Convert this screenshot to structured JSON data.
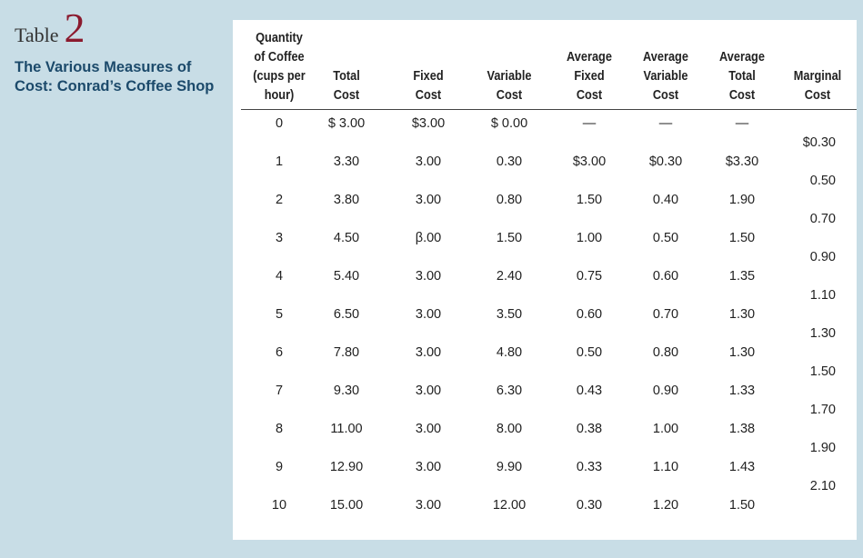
{
  "label": {
    "table_word": "Table",
    "table_number": "2",
    "title": "The Various Measures of Cost: Conrad’s Coffee Shop"
  },
  "columns": [
    "Quantity of Coffee (cups per hour)",
    "Total Cost",
    "Fixed Cost",
    "Variable Cost",
    "Average Fixed Cost",
    "Average Variable Cost",
    "Average Total Cost",
    "Marginal Cost"
  ],
  "column_lines": [
    [
      "Quantity",
      "of Coffee",
      "(cups per",
      "hour)"
    ],
    [
      "Total",
      "Cost"
    ],
    [
      "Fixed",
      "Cost"
    ],
    [
      "Variable",
      "Cost"
    ],
    [
      "Average",
      "Fixed",
      "Cost"
    ],
    [
      "Average",
      "Variable",
      "Cost"
    ],
    [
      "Average",
      "Total",
      "Cost"
    ],
    [
      "Marginal",
      "Cost"
    ]
  ],
  "rows": [
    {
      "quantity": "0",
      "total_cost": "$ 3.00",
      "fixed_cost": "$3.00",
      "variable_cost": "$ 0.00",
      "avg_fixed_cost": "—",
      "avg_variable_cost": "—",
      "avg_total_cost": "—"
    },
    {
      "quantity": "1",
      "total_cost": "3.30",
      "fixed_cost": "3.00",
      "variable_cost": "0.30",
      "avg_fixed_cost": "$3.00",
      "avg_variable_cost": "$0.30",
      "avg_total_cost": "$3.30"
    },
    {
      "quantity": "2",
      "total_cost": "3.80",
      "fixed_cost": "3.00",
      "variable_cost": "0.80",
      "avg_fixed_cost": "1.50",
      "avg_variable_cost": "0.40",
      "avg_total_cost": "1.90"
    },
    {
      "quantity": "3",
      "total_cost": "4.50",
      "fixed_cost": "β.00",
      "variable_cost": "1.50",
      "avg_fixed_cost": "1.00",
      "avg_variable_cost": "0.50",
      "avg_total_cost": "1.50"
    },
    {
      "quantity": "4",
      "total_cost": "5.40",
      "fixed_cost": "3.00",
      "variable_cost": "2.40",
      "avg_fixed_cost": "0.75",
      "avg_variable_cost": "0.60",
      "avg_total_cost": "1.35"
    },
    {
      "quantity": "5",
      "total_cost": "6.50",
      "fixed_cost": "3.00",
      "variable_cost": "3.50",
      "avg_fixed_cost": "0.60",
      "avg_variable_cost": "0.70",
      "avg_total_cost": "1.30"
    },
    {
      "quantity": "6",
      "total_cost": "7.80",
      "fixed_cost": "3.00",
      "variable_cost": "4.80",
      "avg_fixed_cost": "0.50",
      "avg_variable_cost": "0.80",
      "avg_total_cost": "1.30"
    },
    {
      "quantity": "7",
      "total_cost": "9.30",
      "fixed_cost": "3.00",
      "variable_cost": "6.30",
      "avg_fixed_cost": "0.43",
      "avg_variable_cost": "0.90",
      "avg_total_cost": "1.33"
    },
    {
      "quantity": "8",
      "total_cost": "11.00",
      "fixed_cost": "3.00",
      "variable_cost": "8.00",
      "avg_fixed_cost": "0.38",
      "avg_variable_cost": "1.00",
      "avg_total_cost": "1.38"
    },
    {
      "quantity": "9",
      "total_cost": "12.90",
      "fixed_cost": "3.00",
      "variable_cost": "9.90",
      "avg_fixed_cost": "0.33",
      "avg_variable_cost": "1.10",
      "avg_total_cost": "1.43"
    },
    {
      "quantity": "10",
      "total_cost": "15.00",
      "fixed_cost": "3.00",
      "variable_cost": "12.00",
      "avg_fixed_cost": "0.30",
      "avg_variable_cost": "1.20",
      "avg_total_cost": "1.50"
    }
  ],
  "marginal_cost": [
    "$0.30",
    "0.50",
    "0.70",
    "0.90",
    "1.10",
    "1.30",
    "1.50",
    "1.70",
    "1.90",
    "2.10"
  ],
  "colors": {
    "background": "#c8dde6",
    "panel": "#ffffff",
    "title_text": "#1c4a6b",
    "table_number": "#8b1a2e"
  }
}
